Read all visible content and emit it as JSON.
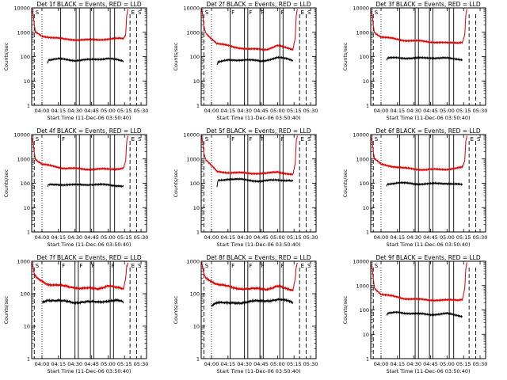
{
  "colors": {
    "events": "#000000",
    "lld": "#dd0000",
    "background": "#ffffff"
  },
  "chart_data": [
    {
      "type": "line",
      "title": "Det 1f BLACK = Events, RED = LLD",
      "xlabel": "Start Time (11-Dec-06 03:50:40)",
      "ylabel": "Counts/sec",
      "x_range": [
        "03:50:40",
        "05:35:00"
      ],
      "x_ticks": [
        "04:00",
        "04:15",
        "04:30",
        "04:45",
        "05:00",
        "05:15",
        "05:30"
      ],
      "y_scale": "log",
      "ylim": [
        1,
        10000
      ],
      "y_ticks": [
        "1",
        "10",
        "100",
        "1000",
        "10000"
      ],
      "flags": [
        "S",
        "E",
        "S"
      ],
      "dashed_lines": [
        "03:53",
        "05:20",
        "05:26"
      ],
      "dotted_lines": [
        "04:00"
      ],
      "solid_lines": [
        "04:17",
        "04:31",
        "04:34",
        "04:44",
        "04:47",
        "05:02",
        "05:06"
      ],
      "series": [
        {
          "color": "red",
          "x": [
            "03:51",
            "03:52",
            "03:53",
            "03:54",
            "04:00",
            "04:20",
            "04:40",
            "05:00",
            "05:10",
            "05:14",
            "05:16",
            "05:17",
            "05:18"
          ],
          "y": [
            8000,
            5000,
            2000,
            1000,
            700,
            520,
            480,
            520,
            550,
            560,
            800,
            5000,
            9000
          ]
        },
        {
          "color": "black",
          "x": [
            "04:05",
            "04:06",
            "04:15",
            "04:30",
            "04:45",
            "05:00",
            "05:10",
            "05:14"
          ],
          "y": [
            55,
            75,
            80,
            70,
            75,
            85,
            70,
            65
          ]
        }
      ]
    },
    {
      "type": "line",
      "title": "Det 2f BLACK = Events, RED = LLD",
      "xlabel": "Start Time (11-Dec-06 03:50:40)",
      "ylabel": "Counts/sec",
      "x_range": [
        "03:50:40",
        "05:35:00"
      ],
      "x_ticks": [
        "04:00",
        "04:15",
        "04:30",
        "04:45",
        "05:00",
        "05:15",
        "05:30"
      ],
      "y_scale": "log",
      "ylim": [
        1,
        10000
      ],
      "y_ticks": [
        "1",
        "10",
        "100",
        "1000",
        "10000"
      ],
      "flags": [
        "S",
        "F",
        "F",
        "F",
        "F",
        "E",
        "S"
      ],
      "dashed_lines": [
        "03:53",
        "05:20",
        "05:26"
      ],
      "dotted_lines": [
        "04:00"
      ],
      "solid_lines": [
        "04:17",
        "04:30",
        "04:33",
        "04:44",
        "04:47",
        "05:02",
        "05:05"
      ],
      "series": [
        {
          "color": "red",
          "x": [
            "03:51",
            "03:52",
            "03:53",
            "03:55",
            "04:05",
            "04:20",
            "04:35",
            "04:50",
            "05:00",
            "05:08",
            "05:14",
            "05:16",
            "05:17",
            "05:18"
          ],
          "y": [
            9000,
            5000,
            1800,
            900,
            350,
            250,
            200,
            200,
            280,
            230,
            200,
            600,
            5000,
            9000
          ]
        },
        {
          "color": "black",
          "x": [
            "04:05",
            "04:06",
            "04:15",
            "04:30",
            "04:45",
            "05:00",
            "05:10",
            "05:14"
          ],
          "y": [
            45,
            60,
            70,
            75,
            65,
            90,
            80,
            70
          ]
        }
      ]
    },
    {
      "type": "line",
      "title": "Det 3f BLACK = Events, RED = LLD",
      "xlabel": "Start Time (11-Dec-06 03:50:40)",
      "ylabel": "Counts/sec",
      "x_range": [
        "03:50:40",
        "05:35:00"
      ],
      "x_ticks": [
        "04:00",
        "04:15",
        "04:30",
        "04:45",
        "05:00",
        "05:15",
        "05:30"
      ],
      "y_scale": "log",
      "ylim": [
        1,
        10000
      ],
      "y_ticks": [
        "1",
        "10",
        "100",
        "1000",
        "10000"
      ],
      "flags": [
        "S"
      ],
      "dashed_lines": [
        "03:53",
        "05:20",
        "05:26"
      ],
      "dotted_lines": [
        "04:00"
      ],
      "solid_lines": [
        "04:17",
        "04:31",
        "04:34",
        "04:44",
        "04:47",
        "05:02",
        "05:06"
      ],
      "series": [
        {
          "color": "red",
          "x": [
            "03:51",
            "03:52",
            "03:53",
            "03:54",
            "04:00",
            "04:20",
            "04:40",
            "05:00",
            "05:10",
            "05:14",
            "05:16",
            "05:17",
            "05:18"
          ],
          "y": [
            8000,
            5000,
            2000,
            1000,
            650,
            470,
            420,
            360,
            380,
            400,
            800,
            5000,
            9000
          ]
        },
        {
          "color": "black",
          "x": [
            "04:05",
            "04:06",
            "04:15",
            "04:30",
            "04:45",
            "05:00",
            "05:10",
            "05:14"
          ],
          "y": [
            70,
            85,
            90,
            85,
            90,
            85,
            80,
            75
          ]
        }
      ]
    },
    {
      "type": "line",
      "title": "Det 4f BLACK = Events, RED = LLD",
      "xlabel": "Start Time (11-Dec-06 03:50:40)",
      "ylabel": "Counts/sec",
      "x_range": [
        "03:50:40",
        "05:35:00"
      ],
      "x_ticks": [
        "04:00",
        "04:15",
        "04:30",
        "04:45",
        "05:00",
        "05:15",
        "05:30"
      ],
      "y_scale": "log",
      "ylim": [
        1,
        10000
      ],
      "y_ticks": [
        "1",
        "10",
        "100",
        "1000",
        "10000"
      ],
      "flags": [
        "S",
        "F",
        "E",
        "S"
      ],
      "dashed_lines": [
        "03:53",
        "05:20",
        "05:26"
      ],
      "dotted_lines": [
        "04:00"
      ],
      "solid_lines": [
        "04:17",
        "04:31",
        "04:34",
        "04:44",
        "04:47",
        "05:02",
        "05:06"
      ],
      "series": [
        {
          "color": "red",
          "x": [
            "03:51",
            "03:52",
            "03:53",
            "03:54",
            "04:00",
            "04:20",
            "04:40",
            "05:00",
            "05:10",
            "05:14",
            "05:16",
            "05:17",
            "05:18"
          ],
          "y": [
            8000,
            5000,
            2000,
            1000,
            600,
            420,
            380,
            380,
            400,
            420,
            800,
            5000,
            9000
          ]
        },
        {
          "color": "black",
          "x": [
            "04:05",
            "04:06",
            "04:15",
            "04:30",
            "04:45",
            "05:00",
            "05:10",
            "05:14"
          ],
          "y": [
            70,
            85,
            90,
            85,
            90,
            85,
            80,
            75
          ]
        }
      ]
    },
    {
      "type": "line",
      "title": "Det 5f BLACK = Events, RED = LLD",
      "xlabel": "Start Time (11-Dec-06 03:50:40)",
      "ylabel": "Counts/sec",
      "x_range": [
        "03:50:40",
        "05:35:00"
      ],
      "x_ticks": [
        "04:00",
        "04:15",
        "04:30",
        "04:45",
        "05:00",
        "05:15",
        "05:30"
      ],
      "y_scale": "log",
      "ylim": [
        1,
        10000
      ],
      "y_ticks": [
        "1",
        "10",
        "100",
        "1000",
        "10000"
      ],
      "flags": [
        "S",
        "F",
        "F",
        "F",
        "F",
        "E",
        "S"
      ],
      "dashed_lines": [
        "03:53",
        "05:20",
        "05:26"
      ],
      "dotted_lines": [
        "04:00"
      ],
      "solid_lines": [
        "04:17",
        "04:30",
        "04:33",
        "04:44",
        "04:47",
        "05:02",
        "05:05"
      ],
      "series": [
        {
          "color": "red",
          "x": [
            "03:51",
            "03:52",
            "03:53",
            "03:55",
            "04:05",
            "04:20",
            "04:35",
            "04:50",
            "05:00",
            "05:08",
            "05:14",
            "05:16",
            "05:17",
            "05:18"
          ],
          "y": [
            9000,
            5000,
            1800,
            900,
            300,
            270,
            260,
            250,
            300,
            250,
            220,
            600,
            5000,
            9000
          ]
        },
        {
          "color": "black",
          "x": [
            "04:05",
            "04:06",
            "04:15",
            "04:30",
            "04:45",
            "05:00",
            "05:10",
            "05:14"
          ],
          "y": [
            70,
            130,
            150,
            140,
            120,
            140,
            130,
            120
          ]
        }
      ]
    },
    {
      "type": "line",
      "title": "Det 6f BLACK = Events, RED = LLD",
      "xlabel": "Start Time (11-Dec-06 03:50:40)",
      "ylabel": "Counts/sec",
      "x_range": [
        "03:50:40",
        "05:35:00"
      ],
      "x_ticks": [
        "04:00",
        "04:15",
        "04:30",
        "04:45",
        "05:00",
        "05:15",
        "05:30"
      ],
      "y_scale": "log",
      "ylim": [
        1,
        10000
      ],
      "y_ticks": [
        "1",
        "10",
        "100",
        "1000",
        "10000"
      ],
      "flags": [
        "S",
        "E",
        "S"
      ],
      "dashed_lines": [
        "03:53",
        "05:20",
        "05:26"
      ],
      "dotted_lines": [
        "04:00"
      ],
      "solid_lines": [
        "04:17",
        "04:31",
        "04:34",
        "04:44",
        "04:47",
        "05:02",
        "05:06"
      ],
      "series": [
        {
          "color": "red",
          "x": [
            "03:51",
            "03:52",
            "03:53",
            "03:54",
            "04:00",
            "04:20",
            "04:40",
            "05:00",
            "05:10",
            "05:14",
            "05:16",
            "05:17",
            "05:18"
          ],
          "y": [
            8000,
            5000,
            2000,
            1000,
            600,
            420,
            360,
            380,
            420,
            450,
            800,
            5000,
            9000
          ]
        },
        {
          "color": "black",
          "x": [
            "04:05",
            "04:06",
            "04:15",
            "04:30",
            "04:45",
            "05:00",
            "05:10",
            "05:14"
          ],
          "y": [
            80,
            95,
            105,
            95,
            95,
            100,
            90,
            85
          ]
        }
      ]
    },
    {
      "type": "line",
      "title": "Det 7f BLACK = Events, RED = LLD",
      "xlabel": "Start Time (11-Dec-06 03:50:40)",
      "ylabel": "Counts/sec",
      "x_range": [
        "03:50:40",
        "05:35:00"
      ],
      "x_ticks": [
        "04:00",
        "04:15",
        "04:30",
        "04:45",
        "05:00",
        "05:15",
        "05:30"
      ],
      "y_scale": "log",
      "ylim": [
        1,
        1000
      ],
      "y_ticks": [
        "1",
        "10",
        "100",
        "1000"
      ],
      "flags": [
        "S",
        "F",
        "F",
        "F",
        "F",
        "E",
        "S"
      ],
      "dashed_lines": [
        "03:53",
        "05:20",
        "05:26"
      ],
      "dotted_lines": [
        "04:00"
      ],
      "solid_lines": [
        "04:17",
        "04:30",
        "04:33",
        "04:44",
        "04:47",
        "05:02",
        "05:05"
      ],
      "series": [
        {
          "color": "red",
          "x": [
            "03:51",
            "03:52",
            "03:53",
            "03:55",
            "04:05",
            "04:20",
            "04:35",
            "04:50",
            "05:00",
            "05:08",
            "05:14",
            "05:16",
            "05:17",
            "05:18"
          ],
          "y": [
            900,
            600,
            400,
            300,
            200,
            170,
            150,
            140,
            180,
            150,
            140,
            300,
            700,
            900
          ]
        },
        {
          "color": "black",
          "x": [
            "04:00",
            "04:05",
            "04:15",
            "04:30",
            "04:45",
            "05:00",
            "05:10",
            "05:14"
          ],
          "y": [
            55,
            65,
            60,
            55,
            55,
            60,
            60,
            55
          ]
        }
      ]
    },
    {
      "type": "line",
      "title": "Det 8f BLACK = Events, RED = LLD",
      "xlabel": "Start Time (11-Dec-06 03:50:40)",
      "ylabel": "Counts/sec",
      "x_range": [
        "03:50:40",
        "05:35:00"
      ],
      "x_ticks": [
        "04:00",
        "04:15",
        "04:30",
        "04:45",
        "05:00",
        "05:15",
        "05:30"
      ],
      "y_scale": "log",
      "ylim": [
        1,
        1000
      ],
      "y_ticks": [
        "1",
        "10",
        "100",
        "1000"
      ],
      "flags": [
        "S",
        "F",
        "F",
        "F",
        "F",
        "E",
        "S"
      ],
      "dashed_lines": [
        "03:53",
        "05:20",
        "05:26"
      ],
      "dotted_lines": [
        "04:00"
      ],
      "solid_lines": [
        "04:17",
        "04:30",
        "04:33",
        "04:44",
        "04:47",
        "05:02",
        "05:05"
      ],
      "series": [
        {
          "color": "red",
          "x": [
            "03:51",
            "03:52",
            "03:53",
            "03:55",
            "04:05",
            "04:20",
            "04:35",
            "04:50",
            "05:00",
            "05:08",
            "05:14",
            "05:16",
            "05:17",
            "05:18"
          ],
          "y": [
            900,
            600,
            400,
            300,
            200,
            150,
            140,
            140,
            170,
            140,
            130,
            300,
            700,
            900
          ]
        },
        {
          "color": "black",
          "x": [
            "04:00",
            "04:05",
            "04:15",
            "04:30",
            "04:45",
            "05:00",
            "05:10",
            "05:14"
          ],
          "y": [
            45,
            55,
            50,
            55,
            60,
            65,
            60,
            55
          ]
        }
      ]
    },
    {
      "type": "line",
      "title": "Det 9f BLACK = Events, RED = LLD",
      "xlabel": "Start Time (11-Dec-06 03:50:40)",
      "ylabel": "Counts/sec",
      "x_range": [
        "03:50:40",
        "05:35:00"
      ],
      "x_ticks": [
        "04:00",
        "04:15",
        "04:30",
        "04:45",
        "05:00",
        "05:15",
        "05:30"
      ],
      "y_scale": "log",
      "ylim": [
        1,
        10000
      ],
      "y_ticks": [
        "1",
        "10",
        "100",
        "1000",
        "10000"
      ],
      "flags": [
        "S"
      ],
      "dashed_lines": [
        "03:53",
        "05:20",
        "05:26"
      ],
      "dotted_lines": [
        "04:00"
      ],
      "solid_lines": [
        "04:17",
        "04:31",
        "04:34",
        "04:44",
        "04:47",
        "05:02",
        "05:06"
      ],
      "series": [
        {
          "color": "red",
          "x": [
            "03:51",
            "03:52",
            "03:53",
            "03:54",
            "04:00",
            "04:20",
            "04:40",
            "05:00",
            "05:10",
            "05:14",
            "05:16",
            "05:17",
            "05:18"
          ],
          "y": [
            8000,
            5000,
            2000,
            800,
            450,
            300,
            260,
            250,
            260,
            280,
            800,
            5000,
            9000
          ]
        },
        {
          "color": "black",
          "x": [
            "04:05",
            "04:06",
            "04:15",
            "04:30",
            "04:45",
            "05:00",
            "05:10",
            "05:14"
          ],
          "y": [
            60,
            70,
            80,
            70,
            65,
            70,
            60,
            55
          ]
        }
      ]
    }
  ]
}
